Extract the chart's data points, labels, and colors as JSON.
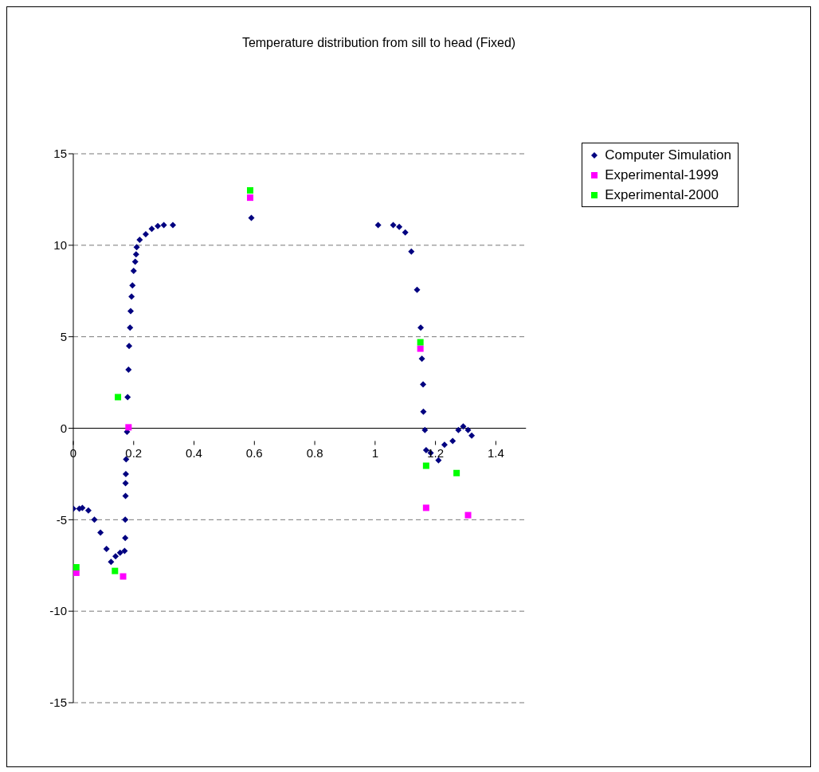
{
  "chart_data": {
    "type": "scatter",
    "title": "Temperature distribution from sill to head (Fixed)",
    "xlim": [
      0,
      1.5
    ],
    "xticks": [
      0,
      0.2,
      0.4,
      0.6,
      0.8,
      1,
      1.2,
      1.4
    ],
    "ylim": [
      -15,
      15
    ],
    "yticks": [
      -15,
      -10,
      -5,
      0,
      5,
      10,
      15
    ],
    "grid": "y",
    "legend": "top right",
    "series": [
      {
        "name": "Computer Simulation",
        "color": "#000080",
        "marker": "diamond",
        "x": [
          0,
          0.02,
          0.03,
          0.05,
          0.07,
          0.09,
          0.11,
          0.125,
          0.14,
          0.155,
          0.17,
          0.172,
          0.172,
          0.173,
          0.173,
          0.174,
          0.175,
          0.178,
          0.18,
          0.183,
          0.185,
          0.188,
          0.19,
          0.193,
          0.196,
          0.2,
          0.205,
          0.208,
          0.21,
          0.22,
          0.24,
          0.26,
          0.28,
          0.3,
          0.33,
          0.59,
          1.01,
          1.06,
          1.08,
          1.1,
          1.12,
          1.139,
          1.151,
          1.155,
          1.159,
          1.16,
          1.165,
          1.169,
          1.184,
          1.21,
          1.23,
          1.257,
          1.276,
          1.292,
          1.308,
          1.32
        ],
        "values": [
          -4.4,
          -4.4,
          -4.35,
          -4.5,
          -5.0,
          -5.7,
          -6.6,
          -7.3,
          -7.0,
          -6.8,
          -6.7,
          -6.0,
          -5.0,
          -3.7,
          -3.0,
          -2.5,
          -1.7,
          -0.2,
          1.7,
          3.2,
          4.5,
          5.5,
          6.4,
          7.2,
          7.8,
          8.6,
          9.1,
          9.5,
          9.9,
          10.3,
          10.6,
          10.9,
          11.05,
          11.1,
          11.1,
          11.5,
          11.1,
          11.1,
          11.0,
          10.7,
          9.65,
          7.56,
          5.5,
          3.8,
          2.4,
          0.9,
          -0.1,
          -1.2,
          -1.35,
          -1.75,
          -0.9,
          -0.7,
          -0.1,
          0.1,
          -0.1,
          -0.4
        ]
      },
      {
        "name": "Experimental-1999",
        "color": "#ff00ff",
        "marker": "square",
        "x": [
          0.01,
          0.165,
          0.183,
          0.586,
          1.15,
          1.169,
          1.308
        ],
        "values": [
          -7.9,
          -8.1,
          0.05,
          12.6,
          4.35,
          -4.35,
          -4.75
        ]
      },
      {
        "name": "Experimental-2000",
        "color": "#00ff00",
        "marker": "square",
        "x": [
          0.01,
          0.138,
          0.148,
          0.586,
          1.15,
          1.169,
          1.27
        ],
        "values": [
          -7.6,
          -7.8,
          1.7,
          13.0,
          4.7,
          -2.05,
          -2.45
        ]
      }
    ]
  }
}
